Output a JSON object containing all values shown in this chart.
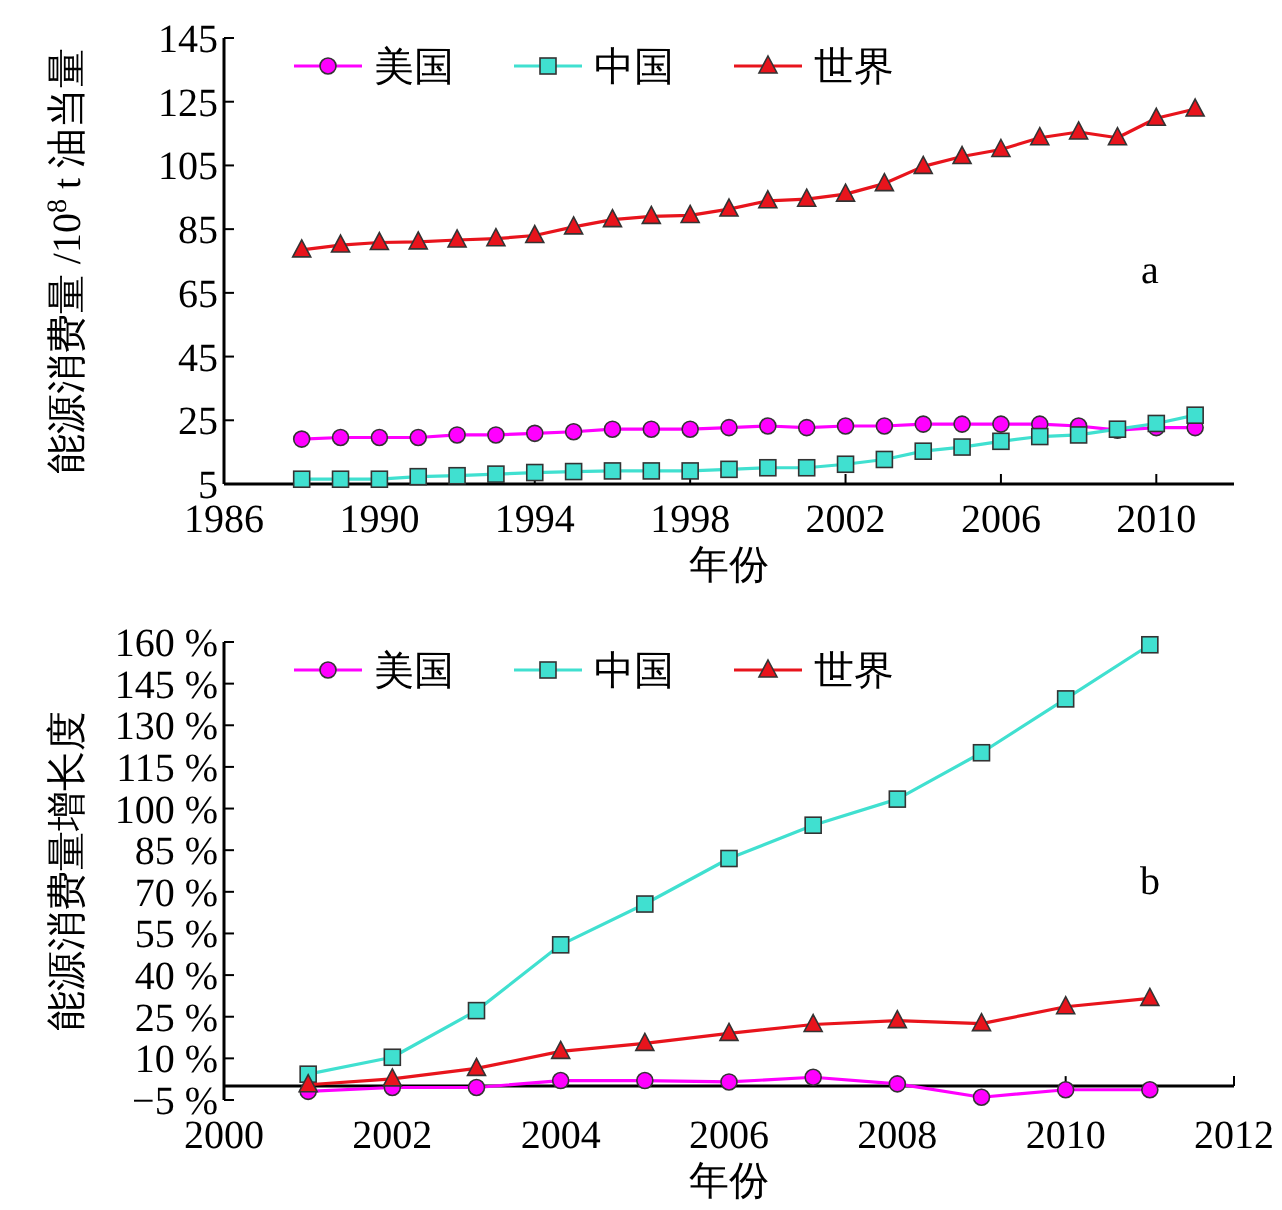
{
  "chart_data": [
    {
      "type": "line",
      "xlabel": "年份",
      "ylabel": "能源消费量 /10$^{8}$ t 油当量",
      "annotations": [
        "a"
      ],
      "legend": "top left",
      "grid": false,
      "xlim": [
        1986,
        2012
      ],
      "xticks": [
        1986,
        1990,
        1994,
        1998,
        2002,
        2006,
        2010
      ],
      "ylim": [
        5,
        145
      ],
      "yticks": [
        5,
        25,
        45,
        65,
        85,
        105,
        125,
        145
      ],
      "x": [
        1988,
        1989,
        1990,
        1991,
        1992,
        1993,
        1994,
        1995,
        1996,
        1997,
        1998,
        1999,
        2000,
        2001,
        2002,
        2003,
        2004,
        2005,
        2006,
        2007,
        2008,
        2009,
        2010,
        2011
      ],
      "series": [
        {
          "name": "美国",
          "color": "#ff00ff",
          "marker": "circle",
          "values": [
            19.1,
            19.6,
            19.6,
            19.6,
            20.4,
            20.4,
            20.9,
            21.4,
            22.2,
            22.2,
            22.2,
            22.7,
            23.2,
            22.7,
            23.2,
            23.2,
            23.8,
            23.8,
            23.8,
            23.8,
            23.2,
            21.9,
            22.7,
            22.7
          ]
        },
        {
          "name": "中国",
          "color": "#40e0d0",
          "marker": "square",
          "values": [
            6.5,
            6.5,
            6.5,
            7.3,
            7.6,
            8.1,
            8.6,
            8.9,
            9.1,
            9.1,
            9.1,
            9.6,
            10.1,
            10.1,
            11.2,
            12.7,
            15.3,
            16.6,
            18.4,
            19.9,
            20.4,
            22.2,
            24.0,
            26.6
          ]
        },
        {
          "name": "世界",
          "color": "#e8141c",
          "marker": "triangle",
          "values": [
            78.5,
            80,
            80.8,
            81,
            81.6,
            82,
            83,
            85.7,
            88,
            89,
            89.3,
            91.3,
            93.9,
            94.4,
            96,
            99.3,
            104.7,
            107.8,
            110,
            113.7,
            115.5,
            113.7,
            119.8,
            122.7
          ]
        }
      ]
    },
    {
      "type": "line",
      "xlabel": "年份",
      "ylabel": "能源消费量增长度",
      "annotations": [
        "b"
      ],
      "legend": "top left",
      "grid": false,
      "xlim": [
        2000,
        2012
      ],
      "xticks": [
        2000,
        2002,
        2004,
        2006,
        2008,
        2010,
        2012
      ],
      "ylim": [
        -5,
        160
      ],
      "yticks": [
        {
          "value": -5,
          "label": "−5 %"
        },
        {
          "value": 10,
          "label": "10 %"
        },
        {
          "value": 25,
          "label": "25 %"
        },
        {
          "value": 40,
          "label": "40 %"
        },
        {
          "value": 55,
          "label": "55 %"
        },
        {
          "value": 70,
          "label": "70 %"
        },
        {
          "value": 85,
          "label": "85 %"
        },
        {
          "value": 100,
          "label": "100 %"
        },
        {
          "value": 115,
          "label": "115 %"
        },
        {
          "value": 130,
          "label": "130 %"
        },
        {
          "value": 145,
          "label": "145 %"
        },
        {
          "value": 160,
          "label": "160 %"
        }
      ],
      "x": [
        2001,
        2002,
        2003,
        2004,
        2005,
        2006,
        2007,
        2008,
        2009,
        2010,
        2011
      ],
      "series": [
        {
          "name": "美国",
          "color": "#ff00ff",
          "marker": "circle",
          "values": [
            -1.9,
            -0.5,
            -0.5,
            2,
            2,
            1.5,
            3.2,
            0.8,
            -4,
            -1.3,
            -1.3
          ]
        },
        {
          "name": "中国",
          "color": "#40e0d0",
          "marker": "square",
          "values": [
            4.3,
            10.4,
            27.2,
            50.9,
            65.6,
            82,
            94,
            103.4,
            120.1,
            139.5,
            159
          ]
        },
        {
          "name": "世界",
          "color": "#e8141c",
          "marker": "triangle",
          "values": [
            0.5,
            2.6,
            6.4,
            12.5,
            15.4,
            19,
            22.2,
            23.6,
            22.5,
            28.6,
            31.6
          ]
        }
      ]
    }
  ]
}
